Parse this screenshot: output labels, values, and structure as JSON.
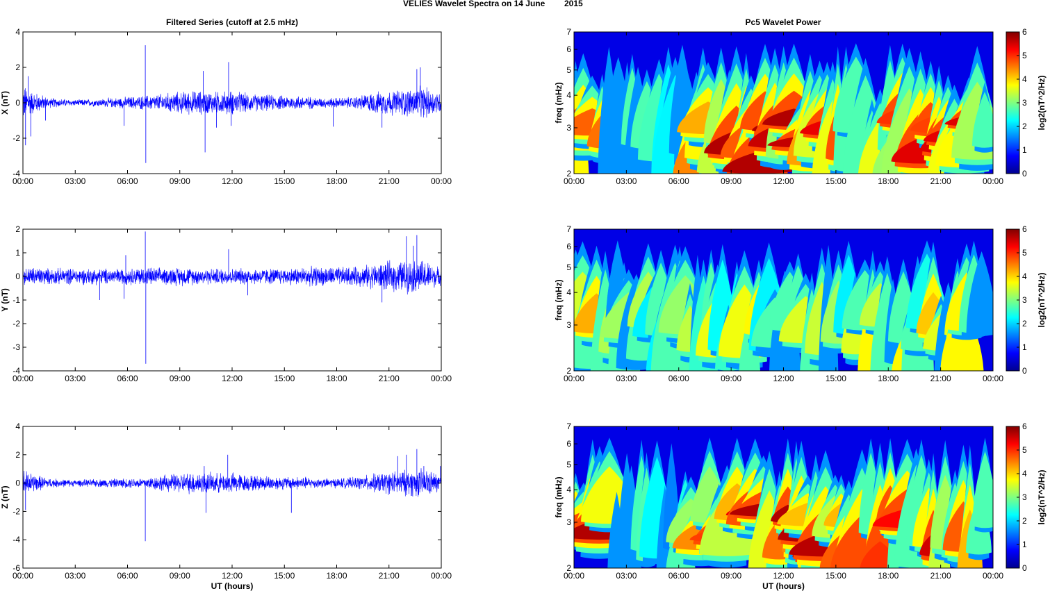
{
  "figure": {
    "suptitle": "VELIES Wavelet Spectra on 14 June",
    "suptitle_year": "2015",
    "left_title": "Filtered Series (cutoff at 2.5 mHz)",
    "right_title": "Pc5 Wavelet Power"
  },
  "chart_data": [
    {
      "type": "line",
      "name": "x-series",
      "color": "#0000ff",
      "ylabel": "X (nT)",
      "xlabel": "",
      "ylim": [
        -4,
        4
      ],
      "yticks": [
        "-4",
        "-2",
        "0",
        "2",
        "4"
      ],
      "ytick_values": [
        -4,
        -2,
        0,
        2,
        4
      ],
      "xticks": [
        "00:00",
        "03:00",
        "06:00",
        "09:00",
        "12:00",
        "15:00",
        "18:00",
        "21:00",
        "00:00"
      ],
      "x_unit": "hours UT",
      "xlim": [
        0,
        24
      ],
      "noise_envelope": {
        "hours": [
          0,
          0.5,
          1.5,
          3,
          4.5,
          6,
          7,
          8,
          9,
          10,
          11,
          12,
          13,
          14,
          15,
          16,
          17,
          18,
          19,
          20,
          21,
          22,
          23,
          24
        ],
        "amplitude_nT": [
          0.9,
          0.6,
          0.25,
          0.15,
          0.2,
          0.3,
          0.35,
          0.45,
          0.55,
          0.6,
          0.55,
          0.6,
          0.45,
          0.4,
          0.35,
          0.35,
          0.25,
          0.25,
          0.3,
          0.5,
          0.6,
          0.7,
          0.8,
          0.5
        ]
      },
      "spikes": [
        {
          "hour": 0.15,
          "value": -2.4
        },
        {
          "hour": 0.3,
          "value": 1.5
        },
        {
          "hour": 0.45,
          "value": -1.9
        },
        {
          "hour": 1.3,
          "value": -1.0
        },
        {
          "hour": 5.8,
          "value": -1.3
        },
        {
          "hour": 7.02,
          "value": 3.25
        },
        {
          "hour": 7.05,
          "value": -3.4
        },
        {
          "hour": 10.35,
          "value": 1.8
        },
        {
          "hour": 10.45,
          "value": -2.8
        },
        {
          "hour": 11.1,
          "value": -1.4
        },
        {
          "hour": 11.8,
          "value": 2.3
        },
        {
          "hour": 11.95,
          "value": -1.3
        },
        {
          "hour": 17.8,
          "value": -1.35
        },
        {
          "hour": 20.6,
          "value": -1.4
        },
        {
          "hour": 22.6,
          "value": 1.9
        },
        {
          "hour": 22.8,
          "value": 2.0
        }
      ]
    },
    {
      "type": "line",
      "name": "y-series",
      "color": "#0000ff",
      "ylabel": "Y (nT)",
      "xlabel": "",
      "ylim": [
        -4,
        2
      ],
      "yticks": [
        "-4",
        "-3",
        "-2",
        "-1",
        "0",
        "1",
        "2"
      ],
      "ytick_values": [
        -4,
        -3,
        -2,
        -1,
        0,
        1,
        2
      ],
      "xticks": [
        "00:00",
        "03:00",
        "06:00",
        "09:00",
        "12:00",
        "15:00",
        "18:00",
        "21:00",
        "00:00"
      ],
      "x_unit": "hours UT",
      "xlim": [
        0,
        24
      ],
      "noise_envelope": {
        "hours": [
          0,
          0.5,
          1.5,
          3,
          4.5,
          6,
          7,
          8,
          9,
          10,
          11,
          12,
          13,
          14,
          15,
          16,
          17,
          18,
          19,
          20,
          21,
          22,
          23,
          24
        ],
        "amplitude_nT": [
          0.3,
          0.35,
          0.3,
          0.3,
          0.3,
          0.3,
          0.35,
          0.3,
          0.35,
          0.3,
          0.3,
          0.3,
          0.3,
          0.3,
          0.3,
          0.35,
          0.35,
          0.35,
          0.35,
          0.45,
          0.55,
          0.6,
          0.6,
          0.3
        ]
      },
      "spikes": [
        {
          "hour": 4.4,
          "value": -1.0
        },
        {
          "hour": 5.8,
          "value": -0.95
        },
        {
          "hour": 5.9,
          "value": 0.9
        },
        {
          "hour": 7.02,
          "value": 1.9
        },
        {
          "hour": 7.05,
          "value": -3.7
        },
        {
          "hour": 11.8,
          "value": 1.15
        },
        {
          "hour": 12.9,
          "value": -0.8
        },
        {
          "hour": 20.6,
          "value": -1.1
        },
        {
          "hour": 22.0,
          "value": 1.7
        },
        {
          "hour": 22.6,
          "value": 1.75
        },
        {
          "hour": 22.4,
          "value": 1.3
        }
      ]
    },
    {
      "type": "line",
      "name": "z-series",
      "color": "#0000ff",
      "ylabel": "Z (nT)",
      "xlabel": "UT (hours)",
      "ylim": [
        -6,
        4
      ],
      "yticks": [
        "-6",
        "-4",
        "-2",
        "0",
        "2",
        "4"
      ],
      "ytick_values": [
        -6,
        -4,
        -2,
        0,
        2,
        4
      ],
      "xticks": [
        "00:00",
        "03:00",
        "06:00",
        "09:00",
        "12:00",
        "15:00",
        "18:00",
        "21:00",
        "00:00"
      ],
      "x_unit": "hours UT",
      "xlim": [
        0,
        24
      ],
      "noise_envelope": {
        "hours": [
          0,
          0.5,
          1.5,
          3,
          4.5,
          6,
          7,
          8,
          9,
          10,
          11,
          12,
          13,
          14,
          15,
          16,
          17,
          18,
          19,
          20,
          21,
          22,
          23,
          24
        ],
        "amplitude_nT": [
          0.9,
          0.6,
          0.3,
          0.2,
          0.25,
          0.3,
          0.35,
          0.5,
          0.6,
          0.7,
          0.6,
          0.65,
          0.5,
          0.45,
          0.4,
          0.4,
          0.3,
          0.3,
          0.35,
          0.55,
          0.7,
          0.8,
          0.9,
          0.5
        ]
      },
      "spikes": [
        {
          "hour": 0.15,
          "value": -1.9
        },
        {
          "hour": 7.02,
          "value": -4.1
        },
        {
          "hour": 10.4,
          "value": 1.2
        },
        {
          "hour": 10.5,
          "value": -2.1
        },
        {
          "hour": 11.75,
          "value": 2.0
        },
        {
          "hour": 15.4,
          "value": -2.1
        },
        {
          "hour": 21.5,
          "value": 1.9
        },
        {
          "hour": 22.0,
          "value": 2.0
        },
        {
          "hour": 22.6,
          "value": 2.4
        },
        {
          "hour": 23.0,
          "value": 1.2
        },
        {
          "hour": 23.95,
          "value": 1.2
        }
      ]
    },
    {
      "type": "heatmap",
      "name": "x-spectrum",
      "ylabel": "freq (mHz)",
      "xlabel": "",
      "y_scale": "log",
      "ylim": [
        2,
        7
      ],
      "yticks": [
        "2",
        "3",
        "4",
        "5",
        "6",
        "7"
      ],
      "ytick_values": [
        2,
        3,
        4,
        5,
        6,
        7
      ],
      "xticks": [
        "00:00",
        "03:00",
        "06:00",
        "09:00",
        "12:00",
        "15:00",
        "18:00",
        "21:00",
        "00:00"
      ],
      "xlim": [
        0,
        24
      ],
      "colorscale": "jet",
      "colorbar_label": "log2(nT^2/Hz)",
      "colorbar_range": [
        0,
        6
      ],
      "colorbar_ticks": [
        "0",
        "1",
        "2",
        "3",
        "4",
        "5",
        "6"
      ],
      "activity_by_hour": [
        5.5,
        5.5,
        3.5,
        2.5,
        3.0,
        2.5,
        3.0,
        4.0,
        5.5,
        6.0,
        6.0,
        5.5,
        5.5,
        5.5,
        5.5,
        5.5,
        5.0,
        4.5,
        4.5,
        5.0,
        5.0,
        5.0,
        5.0,
        3.0
      ]
    },
    {
      "type": "heatmap",
      "name": "y-spectrum",
      "ylabel": "freq (mHz)",
      "xlabel": "",
      "y_scale": "log",
      "ylim": [
        2,
        7
      ],
      "yticks": [
        "2",
        "3",
        "4",
        "5",
        "6",
        "7"
      ],
      "ytick_values": [
        2,
        3,
        4,
        5,
        6,
        7
      ],
      "xticks": [
        "00:00",
        "03:00",
        "06:00",
        "09:00",
        "12:00",
        "15:00",
        "18:00",
        "21:00",
        "00:00"
      ],
      "xlim": [
        0,
        24
      ],
      "colorscale": "jet",
      "colorbar_label": "log2(nT^2/Hz)",
      "colorbar_range": [
        0,
        6
      ],
      "colorbar_ticks": [
        "0",
        "1",
        "2",
        "3",
        "4",
        "5",
        "6"
      ],
      "activity_by_hour": [
        3.5,
        4.0,
        3.5,
        3.0,
        3.5,
        3.0,
        3.0,
        3.0,
        3.5,
        3.5,
        3.5,
        3.0,
        3.0,
        3.5,
        3.5,
        3.5,
        3.5,
        4.0,
        3.5,
        4.0,
        4.0,
        3.5,
        3.5,
        2.5
      ]
    },
    {
      "type": "heatmap",
      "name": "z-spectrum",
      "ylabel": "freq (mHz)",
      "xlabel": "UT (hours)",
      "y_scale": "log",
      "ylim": [
        2,
        7
      ],
      "yticks": [
        "2",
        "3",
        "4",
        "5",
        "6",
        "7"
      ],
      "ytick_values": [
        2,
        3,
        4,
        5,
        6,
        7
      ],
      "xticks": [
        "00:00",
        "03:00",
        "06:00",
        "09:00",
        "12:00",
        "15:00",
        "18:00",
        "21:00",
        "00:00"
      ],
      "xlim": [
        0,
        24
      ],
      "colorscale": "jet",
      "colorbar_label": "log2(nT^2/Hz)",
      "colorbar_range": [
        0,
        6
      ],
      "colorbar_ticks": [
        "0",
        "1",
        "2",
        "3",
        "4",
        "5",
        "6"
      ],
      "activity_by_hour": [
        5.5,
        5.5,
        3.5,
        2.5,
        3.0,
        2.5,
        3.0,
        4.5,
        5.5,
        6.0,
        6.0,
        5.5,
        5.5,
        5.5,
        5.5,
        5.5,
        5.0,
        4.5,
        4.5,
        5.0,
        5.0,
        5.0,
        5.0,
        3.0
      ]
    }
  ]
}
